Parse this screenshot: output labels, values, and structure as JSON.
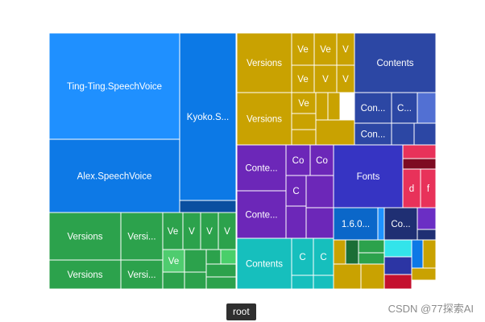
{
  "chart_data": {
    "type": "treemap",
    "root": "root",
    "nodes": [
      {
        "id": "ting",
        "label": "Ting-Ting.SpeechVoice",
        "color": "#1f90ff"
      },
      {
        "id": "alex",
        "label": "Alex.SpeechVoice",
        "color": "#0d79e6"
      },
      {
        "id": "kyoko",
        "label": "Kyoko.S...",
        "color": "#0c79e6"
      },
      {
        "id": "kyoko_b",
        "label": "",
        "color": "#0a4fa0"
      },
      {
        "id": "g_v1",
        "label": "Versions",
        "color": "#2ca24c"
      },
      {
        "id": "g_v2",
        "label": "Versions",
        "color": "#2ca24c"
      },
      {
        "id": "g_v3",
        "label": "Versi...",
        "color": "#2ca24c"
      },
      {
        "id": "g_v4",
        "label": "Versi...",
        "color": "#2ca24c"
      },
      {
        "id": "g_ve",
        "label": "Ve",
        "color": "#2ca24c"
      },
      {
        "id": "g_v5",
        "label": "V",
        "color": "#2ca24c"
      },
      {
        "id": "g_v6",
        "label": "V",
        "color": "#2ca24c"
      },
      {
        "id": "g_v7",
        "label": "V",
        "color": "#2ca24c"
      },
      {
        "id": "g_ve2",
        "label": "Ve",
        "color": "#4fcc6f"
      },
      {
        "id": "g_s1",
        "label": "",
        "color": "#2ca24c"
      },
      {
        "id": "g_s2",
        "label": "",
        "color": "#2ca24c"
      },
      {
        "id": "g_s3",
        "label": "",
        "color": "#2ca24c"
      },
      {
        "id": "g_s4",
        "label": "",
        "color": "#2ca24c"
      },
      {
        "id": "g_s5",
        "label": "",
        "color": "#49cf6a"
      },
      {
        "id": "g_s6",
        "label": "",
        "color": "#2ca24c"
      },
      {
        "id": "g_s7",
        "label": "",
        "color": "#2ca24c"
      },
      {
        "id": "y_v1",
        "label": "Versions",
        "color": "#c9a201"
      },
      {
        "id": "y_v2",
        "label": "Versions",
        "color": "#c9a201"
      },
      {
        "id": "y_ve1",
        "label": "Ve",
        "color": "#c9a201"
      },
      {
        "id": "y_ve2",
        "label": "Ve",
        "color": "#c9a201"
      },
      {
        "id": "y_v3",
        "label": "V",
        "color": "#c9a201"
      },
      {
        "id": "y_ve3",
        "label": "Ve",
        "color": "#c9a201"
      },
      {
        "id": "y_v4",
        "label": "V",
        "color": "#c9a201"
      },
      {
        "id": "y_v5",
        "label": "V",
        "color": "#c9a201"
      },
      {
        "id": "y_ve4",
        "label": "Ve",
        "color": "#c9a201"
      },
      {
        "id": "y_s1",
        "label": "",
        "color": "#c9a201"
      },
      {
        "id": "y_s2",
        "label": "",
        "color": "#c9a201"
      },
      {
        "id": "y_s3",
        "label": "",
        "color": "#c9a201"
      },
      {
        "id": "y_s4",
        "label": "",
        "color": "#c9a201"
      },
      {
        "id": "y_s5",
        "label": "",
        "color": "#c9a201"
      },
      {
        "id": "b_contents",
        "label": "Contents",
        "color": "#2c47a4"
      },
      {
        "id": "b_con1",
        "label": "Con...",
        "color": "#2c47a4"
      },
      {
        "id": "b_c",
        "label": "C...",
        "color": "#2c47a4"
      },
      {
        "id": "b_light",
        "label": "",
        "color": "#5270d3"
      },
      {
        "id": "b_con2",
        "label": "Con...",
        "color": "#2c47a4"
      },
      {
        "id": "b_s1",
        "label": "",
        "color": "#2c47a4"
      },
      {
        "id": "b_s2",
        "label": "",
        "color": "#2c47a4"
      },
      {
        "id": "p_cont1",
        "label": "Conte...",
        "color": "#6c27b8"
      },
      {
        "id": "p_cont2",
        "label": "Conte...",
        "color": "#6c27b8"
      },
      {
        "id": "p_co1",
        "label": "Co",
        "color": "#6c27b8"
      },
      {
        "id": "p_co2",
        "label": "Co",
        "color": "#6c27b8"
      },
      {
        "id": "p_c",
        "label": "C",
        "color": "#6c27b8"
      },
      {
        "id": "p_s1",
        "label": "",
        "color": "#6c27b8"
      },
      {
        "id": "p_s2",
        "label": "",
        "color": "#6c27b8"
      },
      {
        "id": "p_s3",
        "label": "",
        "color": "#6c27b8"
      },
      {
        "id": "f_fonts",
        "label": "Fonts",
        "color": "#3634c3"
      },
      {
        "id": "r_red1",
        "label": "",
        "color": "#e8325a"
      },
      {
        "id": "r_dark",
        "label": "",
        "color": "#7e0b22"
      },
      {
        "id": "r_d",
        "label": "d",
        "color": "#e8325a"
      },
      {
        "id": "r_f",
        "label": "f",
        "color": "#e8325a"
      },
      {
        "id": "v_160",
        "label": "1.6.0...",
        "color": "#0b67c9"
      },
      {
        "id": "v_blue2",
        "label": "",
        "color": "#1e92ff"
      },
      {
        "id": "v_co",
        "label": "Co...",
        "color": "#1f2f73"
      },
      {
        "id": "v_purple",
        "label": "",
        "color": "#6b2ec4"
      },
      {
        "id": "v_s1",
        "label": "",
        "color": "#1f2f73"
      },
      {
        "id": "t_contents",
        "label": "Contents",
        "color": "#16bfbd"
      },
      {
        "id": "t_c1",
        "label": "C",
        "color": "#16bfbd"
      },
      {
        "id": "t_c2",
        "label": "C",
        "color": "#16bfbd"
      },
      {
        "id": "t_s1",
        "label": "",
        "color": "#16bfbd"
      },
      {
        "id": "t_s2",
        "label": "",
        "color": "#16bfbd"
      },
      {
        "id": "m_cyan",
        "label": "",
        "color": "#33e4ea"
      },
      {
        "id": "m_darkgreen",
        "label": "",
        "color": "#1b6e36"
      },
      {
        "id": "m_green",
        "label": "",
        "color": "#2ca24c"
      },
      {
        "id": "m_green2",
        "label": "",
        "color": "#2ca24c"
      },
      {
        "id": "m_blue",
        "label": "",
        "color": "#0d79e6"
      },
      {
        "id": "m_navy",
        "label": "",
        "color": "#2c35a4"
      },
      {
        "id": "m_red",
        "label": "",
        "color": "#c4102e"
      },
      {
        "id": "m_gold1",
        "label": "",
        "color": "#c9a201"
      },
      {
        "id": "m_gold2",
        "label": "",
        "color": "#c9a201"
      },
      {
        "id": "m_gold3",
        "label": "",
        "color": "#c9a201"
      },
      {
        "id": "m_gold4",
        "label": "",
        "color": "#c9a201"
      },
      {
        "id": "m_gold5",
        "label": "",
        "color": "#c9a201"
      }
    ]
  },
  "breadcrumb": {
    "label": "root"
  },
  "watermark": {
    "text": "CSDN @77探索AI"
  }
}
